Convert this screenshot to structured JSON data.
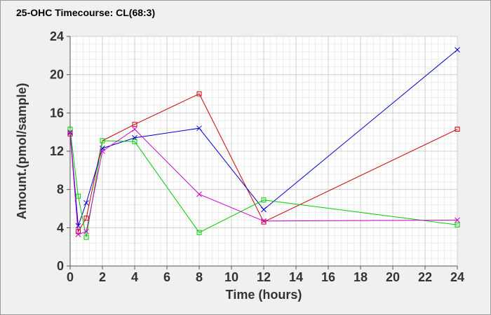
{
  "chart_data": {
    "type": "line",
    "title": "25-OHC Timecourse: CL(68:3)",
    "xlabel": "Time (hours)",
    "ylabel": "Amount.(pmol/sample)",
    "xlim": [
      0,
      24
    ],
    "ylim": [
      0,
      24
    ],
    "x_ticks": [
      0,
      2,
      4,
      6,
      8,
      10,
      12,
      14,
      16,
      18,
      20,
      22,
      24
    ],
    "y_ticks": [
      0,
      4,
      8,
      12,
      16,
      20,
      24
    ],
    "grid": true,
    "series": [
      {
        "color": "#cc0000",
        "marker": "square",
        "x": [
          0,
          0.5,
          1,
          2,
          4,
          8,
          12,
          24
        ],
        "y": [
          13.8,
          3.6,
          5.0,
          13.1,
          14.8,
          18.0,
          4.6,
          14.3
        ]
      },
      {
        "color": "#0000cc",
        "marker": "x",
        "x": [
          0,
          0.5,
          1,
          2,
          4,
          8,
          12,
          24
        ],
        "y": [
          14.0,
          4.2,
          6.6,
          12.3,
          13.4,
          14.4,
          5.9,
          22.6
        ]
      },
      {
        "color": "#00cc00",
        "marker": "square",
        "x": [
          0,
          0.5,
          1,
          2,
          4,
          8,
          12,
          24
        ],
        "y": [
          14.3,
          7.3,
          3.0,
          13.1,
          13.0,
          3.5,
          6.9,
          4.3
        ]
      },
      {
        "color": "#cc00cc",
        "marker": "x",
        "x": [
          0,
          0.5,
          1,
          2,
          4,
          8,
          12,
          24
        ],
        "y": [
          13.9,
          3.3,
          3.6,
          12.0,
          14.3,
          7.5,
          4.7,
          4.8
        ]
      }
    ]
  }
}
